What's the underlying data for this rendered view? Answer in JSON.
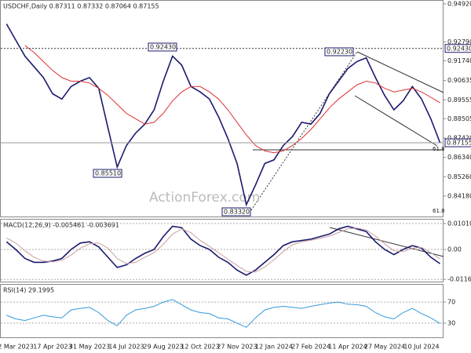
{
  "chart_data": [
    {
      "type": "line",
      "title": "USDCHF,Daily 0.87311 0.87332 0.87064 0.87155",
      "watermark": "ActionForex.com",
      "categories": [
        null,
        "2 Mar 2023",
        null,
        null,
        null,
        "17 Apr 2023",
        null,
        null,
        null,
        "31 May 2023",
        null,
        null,
        null,
        "14 Jul 2023",
        null,
        null,
        null,
        "29 Aug 2023",
        null,
        null,
        null,
        "12 Oct 2023",
        null,
        null,
        null,
        "27 Nov 2023",
        null,
        null,
        null,
        "12 Jan 2024",
        null,
        null,
        null,
        "27 Feb 2024",
        null,
        null,
        null,
        "11 Apr 2024",
        null,
        null,
        null,
        "27 May 2024",
        null,
        null,
        null,
        "10 Jul 2024",
        null,
        null
      ],
      "series": [
        {
          "color": "#1a1a6e",
          "values": [
            0.938,
            0.929,
            0.92,
            0.914,
            0.908,
            0.899,
            0.896,
            0.903,
            0.906,
            0.908,
            0.902,
            0.88,
            0.858,
            0.87,
            0.877,
            0.882,
            0.89,
            0.906,
            0.92,
            0.915,
            0.903,
            0.9,
            0.896,
            0.886,
            0.874,
            0.86,
            0.837,
            0.848,
            0.86,
            0.862,
            0.87,
            0.875,
            0.883,
            0.882,
            0.888,
            0.899,
            0.906,
            0.913,
            0.917,
            0.919,
            0.908,
            0.898,
            0.89,
            0.895,
            0.903,
            0.896,
            0.885,
            0.8716
          ]
        },
        {
          "color": "#e03030",
          "values": [
            null,
            null,
            0.926,
            0.922,
            0.917,
            0.912,
            0.908,
            0.906,
            0.906,
            0.905,
            0.902,
            0.898,
            0.893,
            0.888,
            0.885,
            0.882,
            0.883,
            0.888,
            0.895,
            0.9,
            0.903,
            0.903,
            0.9,
            0.896,
            0.89,
            0.883,
            0.876,
            0.87,
            0.867,
            0.866,
            0.867,
            0.87,
            0.874,
            0.879,
            0.885,
            0.891,
            0.896,
            0.9,
            0.904,
            0.906,
            0.905,
            0.902,
            0.9,
            0.901,
            0.902,
            0.9,
            0.897,
            0.894
          ]
        }
      ],
      "ylim": [
        0.8308,
        0.9505
      ],
      "yticks": [
        {
          "value": 0.9492,
          "label": "0.94920"
        },
        {
          "value": 0.9279,
          "label": "0.92790"
        },
        {
          "value": 0.9174,
          "label": "0.91740"
        },
        {
          "value": 0.90635,
          "label": "0.90635"
        },
        {
          "value": 0.89555,
          "label": "0.89555"
        },
        {
          "value": 0.88505,
          "label": "0.88505"
        },
        {
          "value": 0.8742,
          "label": "0.87420"
        },
        {
          "value": 0.8634,
          "label": "0.86340"
        },
        {
          "value": 0.8526,
          "label": "0.85260"
        },
        {
          "value": 0.8418,
          "label": "0.84180"
        }
      ],
      "levels": [
        {
          "value": 0.9243,
          "label": "0.92430"
        },
        {
          "value": 0.87155,
          "label": "0.87155"
        }
      ],
      "annotations": [
        "0.92430",
        "0.85510",
        "0.83320",
        "0.92230",
        "61.8",
        "61.8"
      ]
    },
    {
      "type": "line",
      "title": "MACD(12,26,9) -0.005461 -0.003691",
      "series": [
        {
          "color": "#1a1a6e",
          "values": [
            0.003,
            0,
            -0.0035,
            -0.005,
            -0.005,
            -0.0045,
            -0.0035,
            0,
            0.0025,
            0.003,
            0.001,
            -0.003,
            -0.007,
            -0.006,
            -0.0035,
            -0.0015,
            0,
            0.005,
            0.009,
            0.0085,
            0.004,
            0.0015,
            0,
            -0.003,
            -0.005,
            -0.008,
            -0.01,
            -0.008,
            -0.005,
            -0.002,
            0.0015,
            0.003,
            0.0035,
            0.004,
            0.005,
            0.006,
            0.008,
            0.009,
            0.008,
            0.007,
            0.003,
            0,
            -0.002,
            0,
            0.0015,
            0.0005,
            -0.003,
            -0.0055
          ]
        },
        {
          "color": "#c8a0a0",
          "values": [
            0.0045,
            0.0025,
            -0.0005,
            -0.003,
            -0.0045,
            -0.0048,
            -0.0042,
            -0.0022,
            0.0005,
            0.0022,
            0.0025,
            0.0005,
            -0.0035,
            -0.0055,
            -0.005,
            -0.003,
            -0.0012,
            0.002,
            0.006,
            0.008,
            0.0065,
            0.0035,
            0.0012,
            -0.0012,
            -0.0038,
            -0.0062,
            -0.0085,
            -0.0088,
            -0.0068,
            -0.004,
            -0.0008,
            0.0018,
            0.003,
            0.0036,
            0.0043,
            0.0052,
            0.0066,
            0.008,
            0.0083,
            0.0076,
            0.0052,
            0.0022,
            -0.0005,
            -0.0008,
            0.0005,
            0.0008,
            -0.0012,
            -0.0037
          ]
        }
      ],
      "ylim": [
        -0.0125,
        0.0113
      ],
      "yticks": [
        0.010101,
        {
          "value": 0,
          "label": "0.00"
        },
        -0.011645
      ]
    },
    {
      "type": "line",
      "title": "RSI(14) 29.1995",
      "series": [
        {
          "color": "#3399dd",
          "values": [
            45,
            38,
            35,
            40,
            45,
            42,
            40,
            55,
            58,
            60,
            50,
            35,
            25,
            45,
            55,
            58,
            62,
            70,
            75,
            65,
            55,
            50,
            48,
            40,
            38,
            30,
            22,
            40,
            55,
            60,
            62,
            60,
            58,
            62,
            65,
            68,
            70,
            66,
            65,
            62,
            50,
            42,
            38,
            50,
            58,
            48,
            40,
            29.1995
          ]
        }
      ],
      "ylim": [
        0,
        100
      ],
      "yticks": [
        70,
        30
      ]
    }
  ]
}
